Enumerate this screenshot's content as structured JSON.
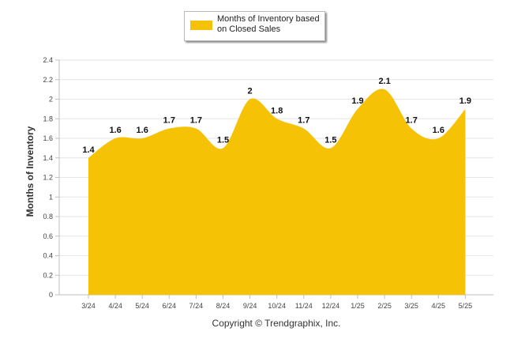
{
  "legend": {
    "label": "Months of Inventory based on Closed Sales",
    "color": "#f6c205"
  },
  "copyright": "Copyright © Trendgraphix, Inc.",
  "chart_data": {
    "type": "area",
    "title": "",
    "xlabel": "",
    "ylabel": "Months of Inventory",
    "categories": [
      "3/24",
      "4/24",
      "5/24",
      "6/24",
      "7/24",
      "8/24",
      "9/24",
      "10/24",
      "11/24",
      "12/24",
      "1/25",
      "2/25",
      "3/25",
      "4/25",
      "5/25"
    ],
    "series": [
      {
        "name": "Months of Inventory based on Closed Sales",
        "values": [
          1.4,
          1.6,
          1.6,
          1.7,
          1.7,
          1.5,
          2,
          1.8,
          1.7,
          1.5,
          1.9,
          2.1,
          1.7,
          1.6,
          1.9
        ],
        "color": "#f6c205"
      }
    ],
    "ylim": [
      0,
      2.4
    ],
    "yticks": [
      "0",
      "0.2",
      "0.4",
      "0.6",
      "0.8",
      "1",
      "1.2",
      "1.4",
      "1.6",
      "1.8",
      "2",
      "2.2",
      "2.4"
    ],
    "data_labels": [
      "1.4",
      "1.6",
      "1.6",
      "1.7",
      "1.7",
      "1.5",
      "2",
      "1.8",
      "1.7",
      "1.5",
      "1.9",
      "2.1",
      "1.7",
      "1.6",
      "1.9"
    ],
    "grid": true,
    "legend_position": "top-center"
  }
}
